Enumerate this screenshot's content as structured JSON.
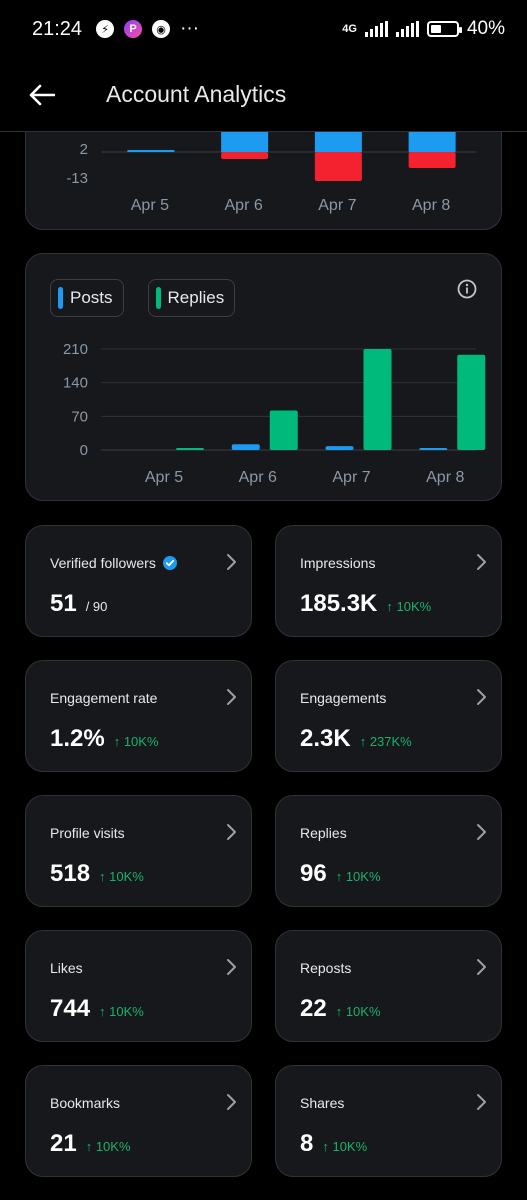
{
  "status_bar": {
    "time": "21:24",
    "network": "4G",
    "battery": "40%",
    "battery_level": 0.4,
    "app_icons": [
      "messenger-icon",
      "picsart-icon",
      "twitter-icon"
    ],
    "more": "···"
  },
  "header": {
    "title": "Account Analytics",
    "back_icon": "arrow-left-icon"
  },
  "net_chart": {
    "chart_data": {
      "type": "bar",
      "categories": [
        "Apr 5",
        "Apr 6",
        "Apr 7",
        "Apr 8"
      ],
      "tick_labels": [
        "2",
        "-13"
      ],
      "series": [
        {
          "values": [
            2,
            19,
            37,
            19
          ],
          "color": "#1d9bf0"
        },
        {
          "values": [
            0,
            -7,
            -29,
            -16
          ],
          "color": "#f4212e"
        }
      ]
    }
  },
  "activity_chart": {
    "legend": [
      {
        "label": "Posts",
        "color": "#1d9bf0"
      },
      {
        "label": "Replies",
        "color": "#00ba7c"
      }
    ],
    "chart_data": {
      "type": "bar",
      "categories": [
        "Apr 5",
        "Apr 6",
        "Apr 7",
        "Apr 8"
      ],
      "y_ticks": [
        0,
        70,
        140,
        210
      ],
      "ylim": [
        0,
        210
      ],
      "grid": true,
      "series": [
        {
          "name": "Posts",
          "values": [
            0,
            12,
            8,
            2
          ]
        },
        {
          "name": "Replies",
          "values": [
            4,
            82,
            210,
            198
          ]
        }
      ]
    }
  },
  "stats": [
    {
      "label": "Verified followers",
      "value": "51",
      "sub": "/ 90",
      "change": "",
      "verified": true
    },
    {
      "label": "Impressions",
      "value": "185.3K",
      "sub": "",
      "change": "↑ 10K%"
    },
    {
      "label": "Engagement rate",
      "value": "1.2%",
      "sub": "",
      "change": "↑ 10K%"
    },
    {
      "label": "Engagements",
      "value": "2.3K",
      "sub": "",
      "change": "↑ 237K%"
    },
    {
      "label": "Profile visits",
      "value": "518",
      "sub": "",
      "change": "↑ 10K%"
    },
    {
      "label": "Replies",
      "value": "96",
      "sub": "",
      "change": "↑ 10K%"
    },
    {
      "label": "Likes",
      "value": "744",
      "sub": "",
      "change": "↑ 10K%"
    },
    {
      "label": "Reposts",
      "value": "22",
      "sub": "",
      "change": "↑ 10K%"
    },
    {
      "label": "Bookmarks",
      "value": "21",
      "sub": "",
      "change": "↑ 10K%"
    },
    {
      "label": "Shares",
      "value": "8",
      "sub": "",
      "change": "↑ 10K%"
    }
  ]
}
